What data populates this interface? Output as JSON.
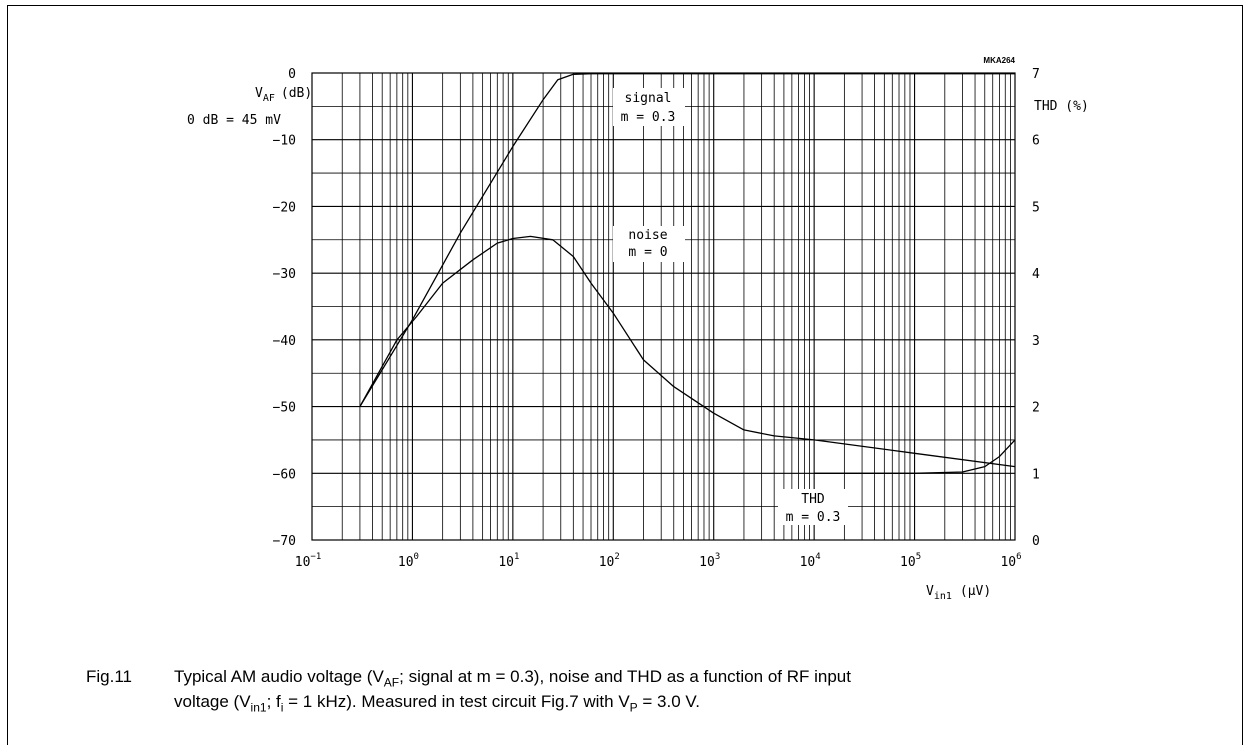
{
  "chart_data": {
    "type": "line",
    "figure_code": "MKA264",
    "x_axis": {
      "label_main": "V",
      "label_sub": "in1",
      "label_unit": "(μV)",
      "scale": "log",
      "range": [
        0.1,
        1000000
      ],
      "tick_labels": [
        {
          "base": "10",
          "exp": "−1"
        },
        {
          "base": "10",
          "exp": "0"
        },
        {
          "base": "10",
          "exp": "1"
        },
        {
          "base": "10",
          "exp": "2"
        },
        {
          "base": "10",
          "exp": "3"
        },
        {
          "base": "10",
          "exp": "4"
        },
        {
          "base": "10",
          "exp": "5"
        },
        {
          "base": "10",
          "exp": "6"
        }
      ]
    },
    "y_axis_left": {
      "label_main": "V",
      "label_sub": "AF",
      "label_unit": "(dB)",
      "note": "0 dB = 45 mV",
      "range": [
        -70,
        0
      ],
      "tick_labels": [
        "0",
        "−10",
        "−20",
        "−30",
        "−40",
        "−50",
        "−60",
        "−70"
      ]
    },
    "y_axis_right": {
      "label": "THD (%)",
      "range": [
        0,
        7
      ],
      "tick_labels": [
        "7",
        "6",
        "5",
        "4",
        "3",
        "2",
        "1",
        "0"
      ]
    },
    "grid": true,
    "series": [
      {
        "name": "signal",
        "label_line2": "m = 0.3",
        "axis": "left",
        "x": [
          0.3,
          1,
          3,
          10,
          20,
          28,
          40,
          60,
          100,
          1000,
          10000,
          100000,
          1000000
        ],
        "y": [
          -50,
          -37,
          -24,
          -11,
          -4,
          -1,
          -0.2,
          -0.1,
          -0.1,
          -0.1,
          -0.1,
          -0.1,
          -0.1
        ]
      },
      {
        "name": "noise",
        "label_line2": "m = 0",
        "axis": "left",
        "x": [
          0.3,
          0.7,
          1.1,
          2,
          4,
          7,
          10,
          15,
          25,
          40,
          60,
          100,
          200,
          400,
          1000,
          2000,
          4000,
          10000,
          100000,
          1000000
        ],
        "y": [
          -50,
          -40,
          -36.5,
          -31.5,
          -28,
          -25.5,
          -24.8,
          -24.5,
          -25,
          -27.5,
          -31.5,
          -36,
          -43,
          -47,
          -51,
          -53.5,
          -54.4,
          -55,
          -57,
          -59
        ]
      },
      {
        "name": "THD",
        "label_line2": "m = 0.3",
        "axis": "right",
        "x": [
          10000,
          100000,
          300000,
          500000,
          700000,
          1000000
        ],
        "y": [
          1.0,
          1.0,
          1.02,
          1.1,
          1.25,
          1.5
        ]
      }
    ]
  },
  "caption": {
    "fig": "Fig.11",
    "l1a": "Typical AM audio voltage (V",
    "l1b": "AF",
    "l1c": "; signal at m = 0.3), noise and THD as a function of RF input",
    "l2a": "voltage (V",
    "l2b": "in1",
    "l2c": "; f",
    "l2d": "i",
    "l2e": " = 1 kHz). Measured in test circuit Fig.7 with V",
    "l2f": "P",
    "l2g": " = 3.0 V."
  }
}
